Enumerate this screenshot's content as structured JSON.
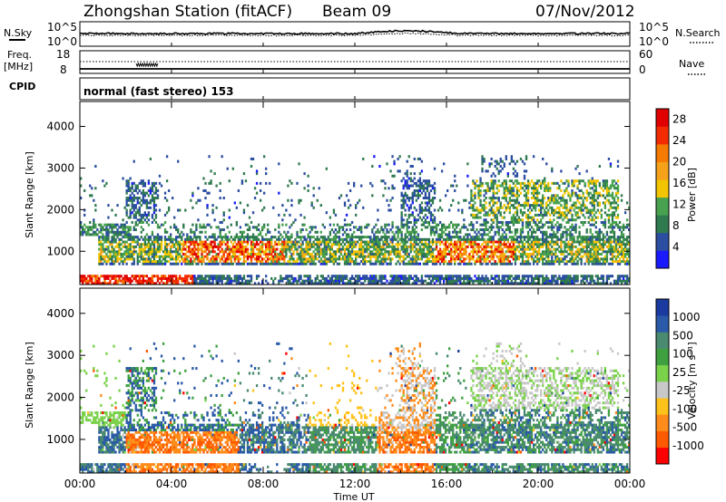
{
  "header": {
    "station": "Zhongshan Station (fitACF)",
    "beam": "Beam 09",
    "date": "07/Nov/2012"
  },
  "strips": {
    "nsky_label": "N.Sky",
    "nsearch_label": "N.Search",
    "noise_ticks": [
      "10^5",
      "10^0"
    ],
    "freq_label_1": "Freq.",
    "freq_label_2": "[MHz]",
    "freq_ticks": [
      "18",
      "8"
    ],
    "nave_label": "Nave",
    "nave_ticks": [
      "60",
      "0"
    ],
    "cpid_label": "CPID",
    "cpid_text": "normal (fast stereo) 153"
  },
  "colors": {
    "power": [
      "#1a1aff",
      "#2b4ea0",
      "#2f7a4f",
      "#47a14e",
      "#f2c500",
      "#f5a11a",
      "#f57a00",
      "#f22b00",
      "#e00000"
    ],
    "velocity": [
      "#ff0000",
      "#ff5a00",
      "#ff8c1a",
      "#ffc21a",
      "#c8c8c8",
      "#7ad24a",
      "#3fa040",
      "#4a8a70",
      "#2a5aa8",
      "#1a3aa0"
    ]
  },
  "chart_data": [
    {
      "type": "heatmap",
      "panel": "power",
      "ylabel": "Slant Range [km]",
      "y_ticks": [
        "1000",
        "2000",
        "3000",
        "4000"
      ],
      "ylim": [
        200,
        4600
      ],
      "x_ticks": [
        "00:00",
        "04:00",
        "08:00",
        "12:00",
        "16:00",
        "20:00",
        "00:00"
      ],
      "xlim_hours": [
        0,
        24
      ],
      "colorbar": {
        "label": "Power [dB]",
        "ticks": [
          "4",
          "8",
          "12",
          "16",
          "20",
          "24",
          "28"
        ],
        "range": [
          0,
          30
        ]
      }
    },
    {
      "type": "heatmap",
      "panel": "velocity",
      "ylabel": "Slant Range [km]",
      "y_ticks": [
        "1000",
        "2000",
        "3000",
        "4000"
      ],
      "ylim": [
        200,
        4600
      ],
      "x_ticks": [
        "00:00",
        "04:00",
        "08:00",
        "12:00",
        "16:00",
        "20:00",
        "00:00"
      ],
      "xlabel": "Time UT",
      "colorbar": {
        "label": "Velocity [m s⁻¹]",
        "ticks": [
          "1000",
          "500",
          "100",
          "25",
          "-25",
          "-100",
          "-500",
          "-1000"
        ],
        "range": [
          -1000,
          1000
        ]
      }
    }
  ]
}
